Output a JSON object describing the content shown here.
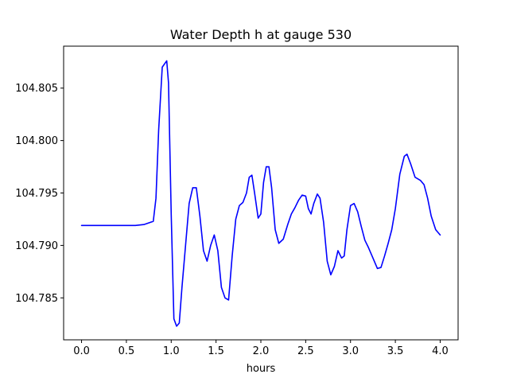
{
  "chart_data": {
    "type": "line",
    "title": "Water Depth h at gauge 530",
    "xlabel": "hours",
    "ylabel": "",
    "xlim": [
      -0.2,
      4.2
    ],
    "ylim": [
      104.781,
      104.809
    ],
    "x_ticks": [
      0.0,
      0.5,
      1.0,
      1.5,
      2.0,
      2.5,
      3.0,
      3.5,
      4.0
    ],
    "x_tick_labels": [
      "0.0",
      "0.5",
      "1.0",
      "1.5",
      "2.0",
      "2.5",
      "3.0",
      "3.5",
      "4.0"
    ],
    "y_ticks": [
      104.785,
      104.79,
      104.795,
      104.8,
      104.805
    ],
    "y_tick_labels": [
      "104.785",
      "104.790",
      "104.795",
      "104.800",
      "104.805"
    ],
    "grid": false,
    "series": [
      {
        "name": "h",
        "color": "#0000ff",
        "x": [
          0.0,
          0.3,
          0.6,
          0.7,
          0.8,
          0.83,
          0.86,
          0.9,
          0.95,
          0.97,
          1.0,
          1.03,
          1.06,
          1.09,
          1.12,
          1.16,
          1.2,
          1.24,
          1.28,
          1.32,
          1.36,
          1.4,
          1.44,
          1.48,
          1.52,
          1.56,
          1.6,
          1.64,
          1.68,
          1.72,
          1.76,
          1.8,
          1.84,
          1.87,
          1.9,
          1.93,
          1.97,
          2.0,
          2.03,
          2.06,
          2.09,
          2.12,
          2.16,
          2.2,
          2.25,
          2.3,
          2.34,
          2.38,
          2.42,
          2.46,
          2.5,
          2.53,
          2.56,
          2.59,
          2.63,
          2.66,
          2.7,
          2.74,
          2.78,
          2.82,
          2.86,
          2.9,
          2.93,
          2.96,
          3.0,
          3.04,
          3.08,
          3.12,
          3.16,
          3.2,
          3.25,
          3.3,
          3.34,
          3.38,
          3.42,
          3.46,
          3.5,
          3.55,
          3.6,
          3.63,
          3.67,
          3.72,
          3.78,
          3.82,
          3.86,
          3.9,
          3.95,
          4.0
        ],
        "values": [
          104.7919,
          104.7919,
          104.7919,
          104.792,
          104.7923,
          104.7945,
          104.801,
          104.807,
          104.8076,
          104.8055,
          104.793,
          104.783,
          104.7823,
          104.7826,
          104.786,
          104.79,
          104.794,
          104.7955,
          104.7955,
          104.7928,
          104.7895,
          104.7885,
          104.79,
          104.791,
          104.7895,
          104.786,
          104.785,
          104.7848,
          104.789,
          104.7925,
          104.7938,
          104.7941,
          104.795,
          104.7965,
          104.7967,
          104.795,
          104.7926,
          104.793,
          104.796,
          104.7975,
          104.7975,
          104.7955,
          104.7915,
          104.7902,
          104.7906,
          104.792,
          104.793,
          104.7936,
          104.7943,
          104.7948,
          104.7947,
          104.7935,
          104.793,
          104.794,
          104.7949,
          104.7945,
          104.7922,
          104.7885,
          104.7872,
          104.788,
          104.7895,
          104.7888,
          104.789,
          104.7915,
          104.7938,
          104.794,
          104.7932,
          104.7918,
          104.7905,
          104.7898,
          104.7888,
          104.7878,
          104.7879,
          104.789,
          104.7902,
          104.7915,
          104.7935,
          104.7968,
          104.7985,
          104.7987,
          104.7978,
          104.7965,
          104.7962,
          104.7958,
          104.7945,
          104.7928,
          104.7915,
          104.791
        ]
      }
    ]
  }
}
